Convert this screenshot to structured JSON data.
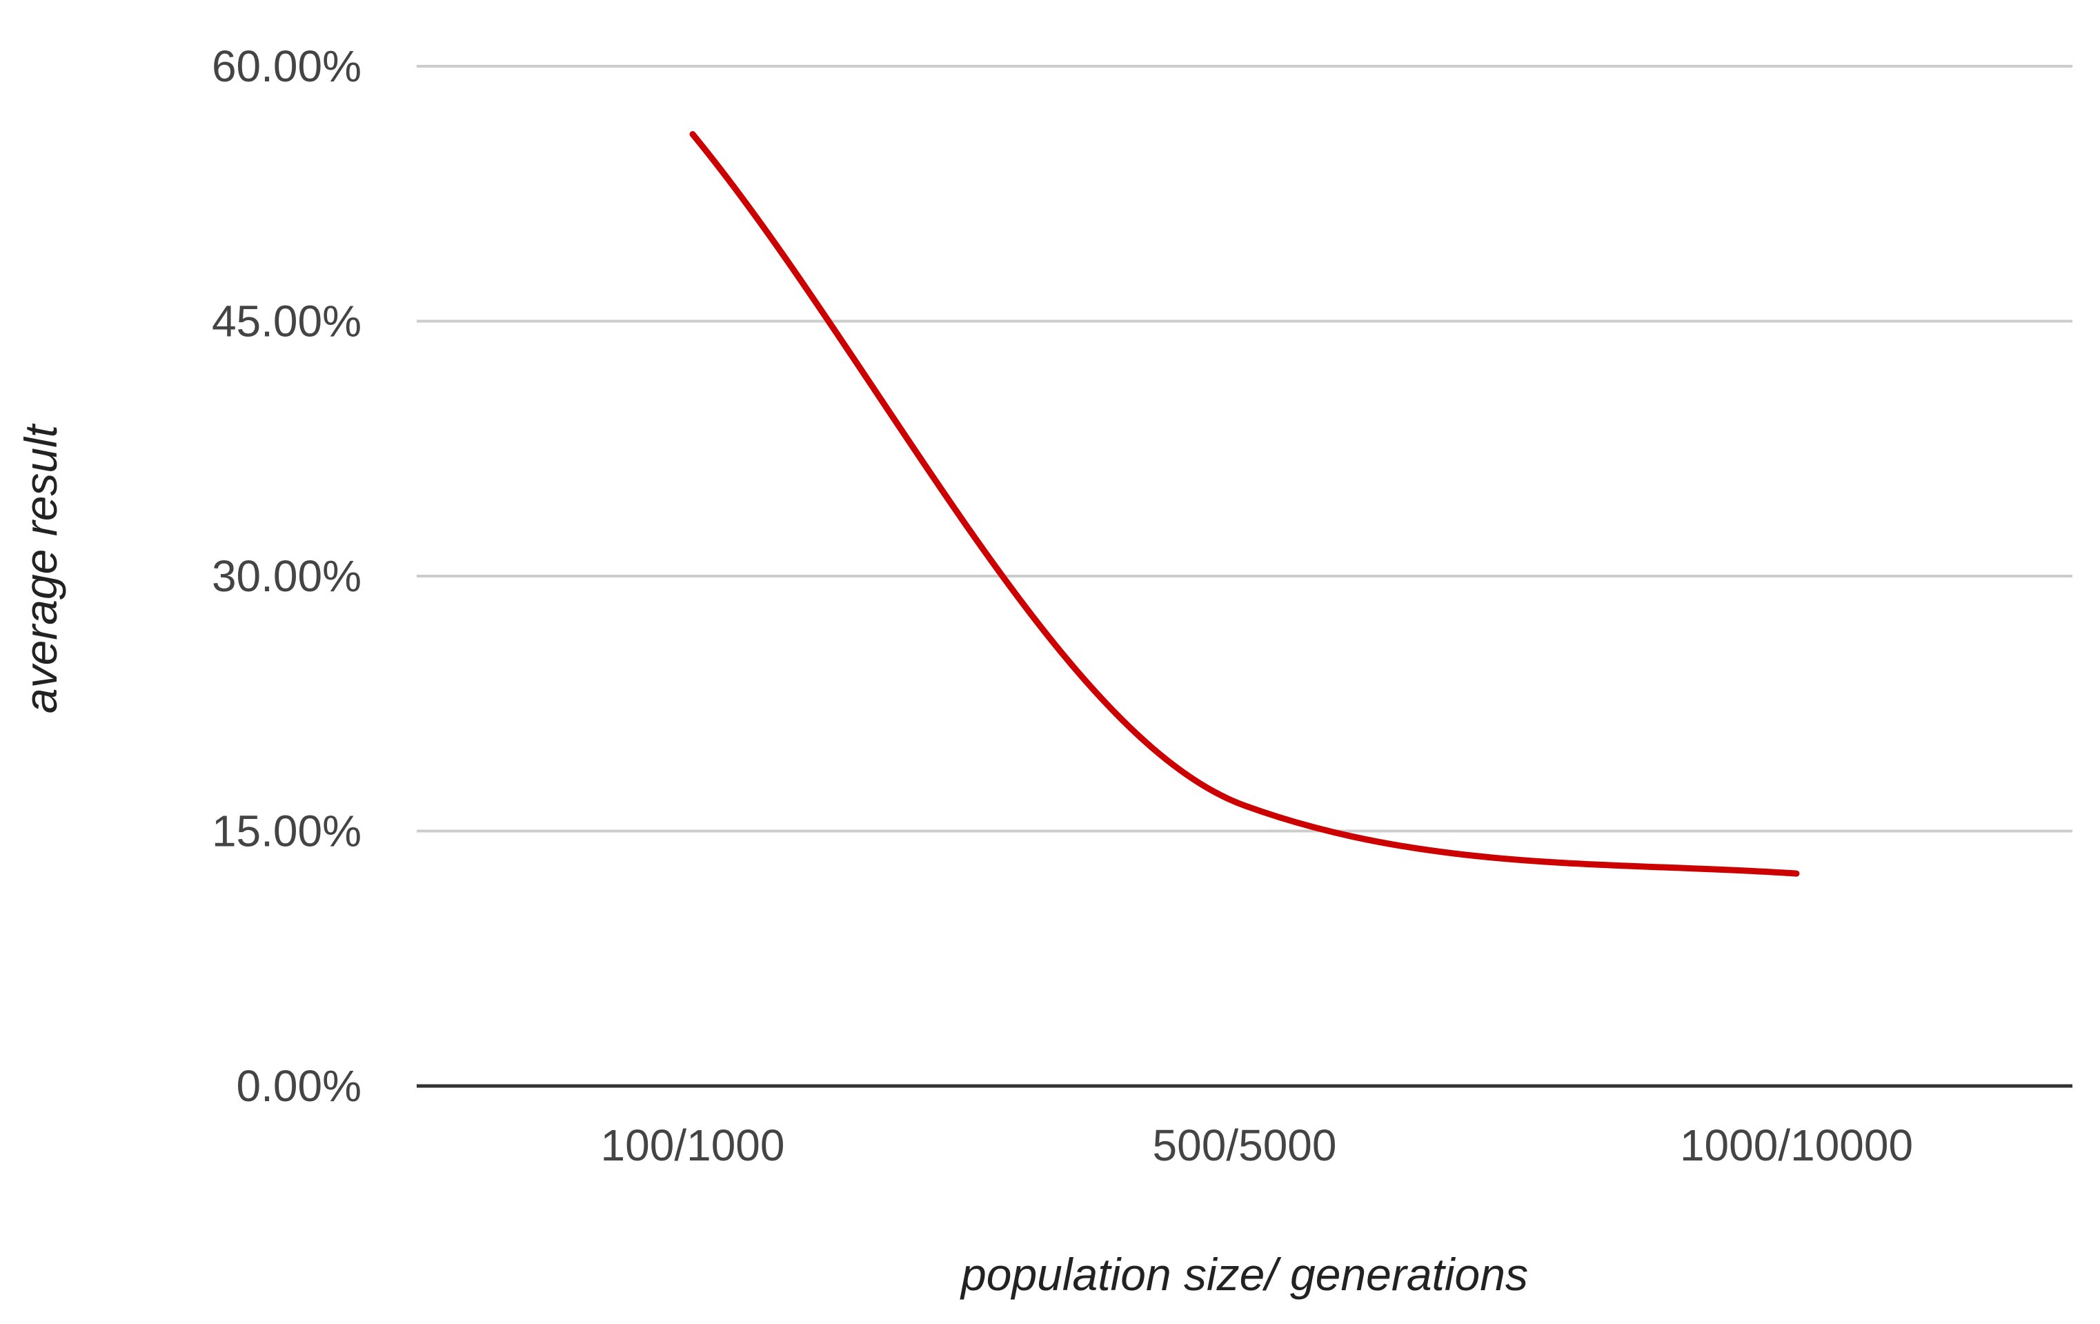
{
  "chart_data": {
    "type": "line",
    "title": "",
    "xlabel": "population size/ generations",
    "ylabel": "average result",
    "categories": [
      "100/1000",
      "500/5000",
      "1000/10000"
    ],
    "series": [
      {
        "values": [
          56.0,
          16.5,
          12.5
        ],
        "color": "#cc0000"
      }
    ],
    "ylim": [
      0,
      60
    ],
    "yticks": [
      0,
      15,
      30,
      45,
      60
    ],
    "ytick_labels": [
      "0.00%",
      "15.00%",
      "30.00%",
      "45.00%",
      "60.00%"
    ],
    "grid": true,
    "legend": "none",
    "smooth": true
  }
}
